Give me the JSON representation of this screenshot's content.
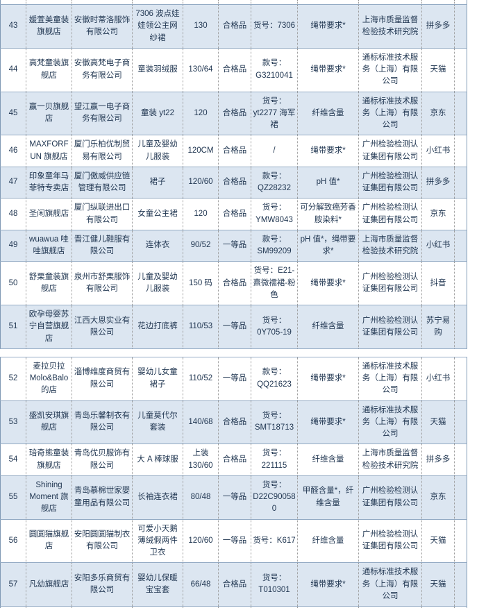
{
  "colors": {
    "row_shade": "#dce6f1",
    "horizontal_border": "#94abc4",
    "vertical_border": "#9b9b9b",
    "text": "#1f3550"
  },
  "table": {
    "column_keys": [
      "seq",
      "store",
      "company",
      "product",
      "size",
      "grade",
      "item_no",
      "issue",
      "lab",
      "platform"
    ],
    "sections": [
      {
        "rows": [
          {
            "seq": "43",
            "store": "媛萱美童装旗舰店",
            "company": "安徽时蒂洛服饰有限公司",
            "product": "7306 波点娃娃领公主网纱裙",
            "size": "130",
            "grade": "合格品",
            "item_no": "货号：7306",
            "issue": "绳带要求*",
            "lab": "上海市质量监督检验技术研究院",
            "platform": "拼多多",
            "shaded": true
          },
          {
            "seq": "44",
            "store": "高梵童装旗舰店",
            "company": "安徽高梵电子商务有限公司",
            "product": "童装羽绒服",
            "size": "130/64",
            "grade": "合格品",
            "item_no": "款号：G3210041",
            "issue": "绳带要求*",
            "lab": "通标标准技术服务（上海）有限公司",
            "platform": "天猫",
            "shaded": false
          },
          {
            "seq": "45",
            "store": "赢一贝旗舰店",
            "company": "望江赢一电子商务有限公司",
            "product": "童装 yt22",
            "size": "120",
            "grade": "合格品",
            "item_no": "货号：yt2277 海军裙",
            "issue": "纤维含量",
            "lab": "通标标准技术服务（上海）有限公司",
            "platform": "京东",
            "shaded": true
          },
          {
            "seq": "46",
            "store": "MAXFORFUN 旗舰店",
            "company": "厦门乐柏优制贸易有限公司",
            "product": "儿童及婴幼儿服装",
            "size": "120CM",
            "grade": "合格品",
            "item_no": "/",
            "issue": "绳带要求*",
            "lab": "广州检验检测认证集团有限公司",
            "platform": "小红书",
            "shaded": false
          },
          {
            "seq": "47",
            "store": "印象童年马菲特专卖店",
            "company": "厦门傲威供应链管理有限公司",
            "product": "裙子",
            "size": "120/60",
            "grade": "合格品",
            "item_no": "款号：QZ28232",
            "issue": "pH 值*",
            "lab": "广州检验检测认证集团有限公司",
            "platform": "拼多多",
            "shaded": true
          },
          {
            "seq": "48",
            "store": "圣闲旗舰店",
            "company": "厦门纵联进出口有限公司",
            "product": "女童公主裙",
            "size": "120",
            "grade": "合格品",
            "item_no": "货号：YMW8043",
            "issue": "可分解致癌芳香胺染料*",
            "lab": "广州检验检测认证集团有限公司",
            "platform": "京东",
            "shaded": false
          },
          {
            "seq": "49",
            "store": "wuawua 哇哇旗舰店",
            "company": "晋江健儿鞋服有限公司",
            "product": "连体衣",
            "size": "90/52",
            "grade": "一等品",
            "item_no": "款号：SM99209",
            "issue": "pH 值*，绳带要求*",
            "lab": "上海市质量监督检验技术研究院",
            "platform": "小红书",
            "shaded": true
          },
          {
            "seq": "50",
            "store": "舒栗童装旗舰店",
            "company": "泉州市舒栗服饰有限公司",
            "product": "儿童及婴幼儿服装",
            "size": "150 码",
            "grade": "合格品",
            "item_no": "货号：E21-熹微襦裙-粉色",
            "issue": "绳带要求*",
            "lab": "广州检验检测认证集团有限公司",
            "platform": "抖音",
            "shaded": false
          },
          {
            "seq": "51",
            "store": "欧孕母婴苏宁自营旗舰店",
            "company": "江西大恩实业有限公司",
            "product": "花边打底裤",
            "size": "110/53",
            "grade": "一等品",
            "item_no": "货号：0Y705-19",
            "issue": "纤维含量",
            "lab": "广州检验检测认证集团有限公司",
            "platform": "苏宁易购",
            "shaded": true
          }
        ]
      },
      {
        "rows": [
          {
            "seq": "52",
            "store": "麦拉贝拉 Molo&Balo 的店",
            "company": "淄博维度商贸有限公司",
            "product": "婴幼儿女童裙子",
            "size": "110/52",
            "grade": "一等品",
            "item_no": "款号：QQ21623",
            "issue": "绳带要求*",
            "lab": "通标标准技术服务（上海）有限公司",
            "platform": "小红书",
            "shaded": false
          },
          {
            "seq": "53",
            "store": "盛凯安琪旗舰店",
            "company": "青岛乐馨制衣有限公司",
            "product": "儿童莫代尔套装",
            "size": "140/68",
            "grade": "合格品",
            "item_no": "货号：SMT18713",
            "issue": "绳带要求*",
            "lab": "通标标准技术服务（上海）有限公司",
            "platform": "天猫",
            "shaded": true
          },
          {
            "seq": "54",
            "store": "琣奇熊童装旗舰店",
            "company": "青岛优贝服饰有限公司",
            "product": "大 A 棒球服",
            "size": "上装 130/60",
            "grade": "合格品",
            "item_no": "货号：221115",
            "issue": "纤维含量",
            "lab": "上海市质量监督检验技术研究院",
            "platform": "拼多多",
            "shaded": false
          },
          {
            "seq": "55",
            "store": "Shining Moment 旗舰店",
            "company": "青岛慕棉世家婴童用品有限公司",
            "product": "长袖连衣裙",
            "size": "80/48",
            "grade": "一等品",
            "item_no": "货号：D22C900580",
            "issue": "甲醛含量*，纤维含量",
            "lab": "广州检验检测认证集团有限公司",
            "platform": "京东",
            "shaded": true
          },
          {
            "seq": "56",
            "store": "圆圆猫旗舰店",
            "company": "安阳圆圆猫制衣有限公司",
            "product": "可爱小天鹅薄绒假两件卫衣",
            "size": "120/60",
            "grade": "一等品",
            "item_no": "货号：K617",
            "issue": "纤维含量",
            "lab": "广州检验检测认证集团有限公司",
            "platform": "天猫",
            "shaded": false
          },
          {
            "seq": "57",
            "store": "凡幼旗舰店",
            "company": "安阳多乐商贸有限公司",
            "product": "婴幼儿保暖宝宝套",
            "size": "66/48",
            "grade": "合格品",
            "item_no": "货号：T010301",
            "issue": "绳带要求*",
            "lab": "通标标准技术服务（上海）有限公司",
            "platform": "天猫",
            "shaded": true
          }
        ]
      }
    ]
  }
}
